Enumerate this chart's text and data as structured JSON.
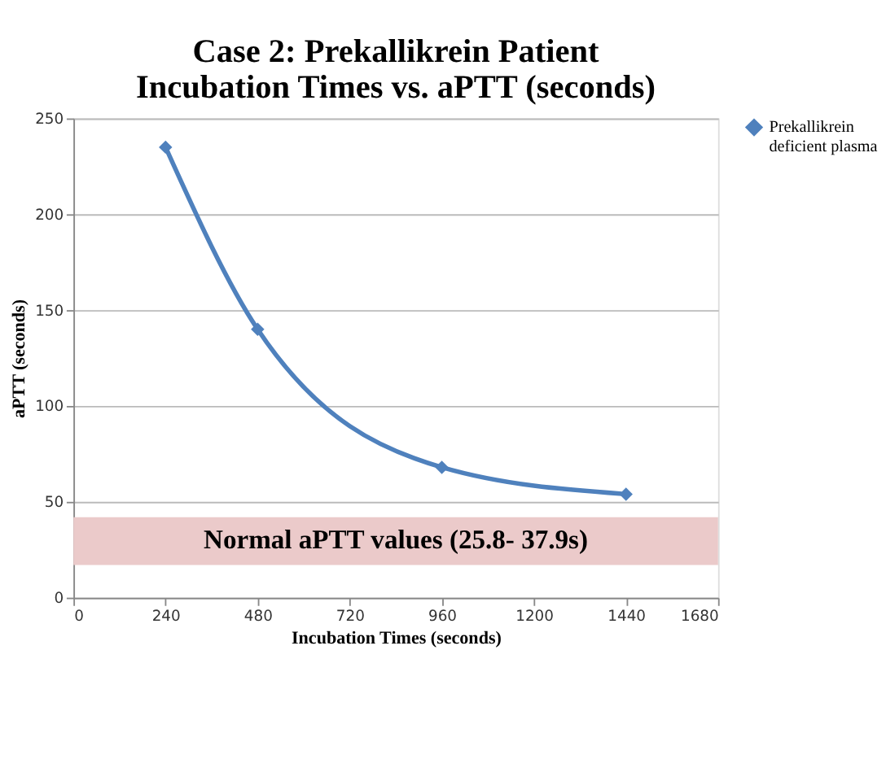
{
  "chart_data": {
    "type": "line",
    "title": "Case 2: Prekallikrein Patient\nIncubation Times vs. aPTT (seconds)",
    "xlabel": "Incubation  Times (seconds)",
    "ylabel": "aPTT (seconds)",
    "x": [
      240,
      480,
      960,
      1440
    ],
    "series": [
      {
        "name": "Prekallikrein deficient plasma",
        "color": "#4f81bd",
        "values": [
          235,
          140,
          68,
          54
        ]
      }
    ],
    "xlim": [
      0,
      1680
    ],
    "xticks": [
      0,
      240,
      480,
      720,
      960,
      1200,
      1440,
      1680
    ],
    "ylim": [
      0,
      250
    ],
    "yticks": [
      0,
      50,
      100,
      150,
      200,
      250
    ],
    "bands": [
      {
        "axis": "y",
        "from": 17,
        "to": 42,
        "label": "Normal aPTT values (25.8- 37.9s)",
        "color": "#ebcaca"
      }
    ],
    "grid": "y",
    "legend": "right",
    "marker": "diamond",
    "line_style": "solid"
  }
}
